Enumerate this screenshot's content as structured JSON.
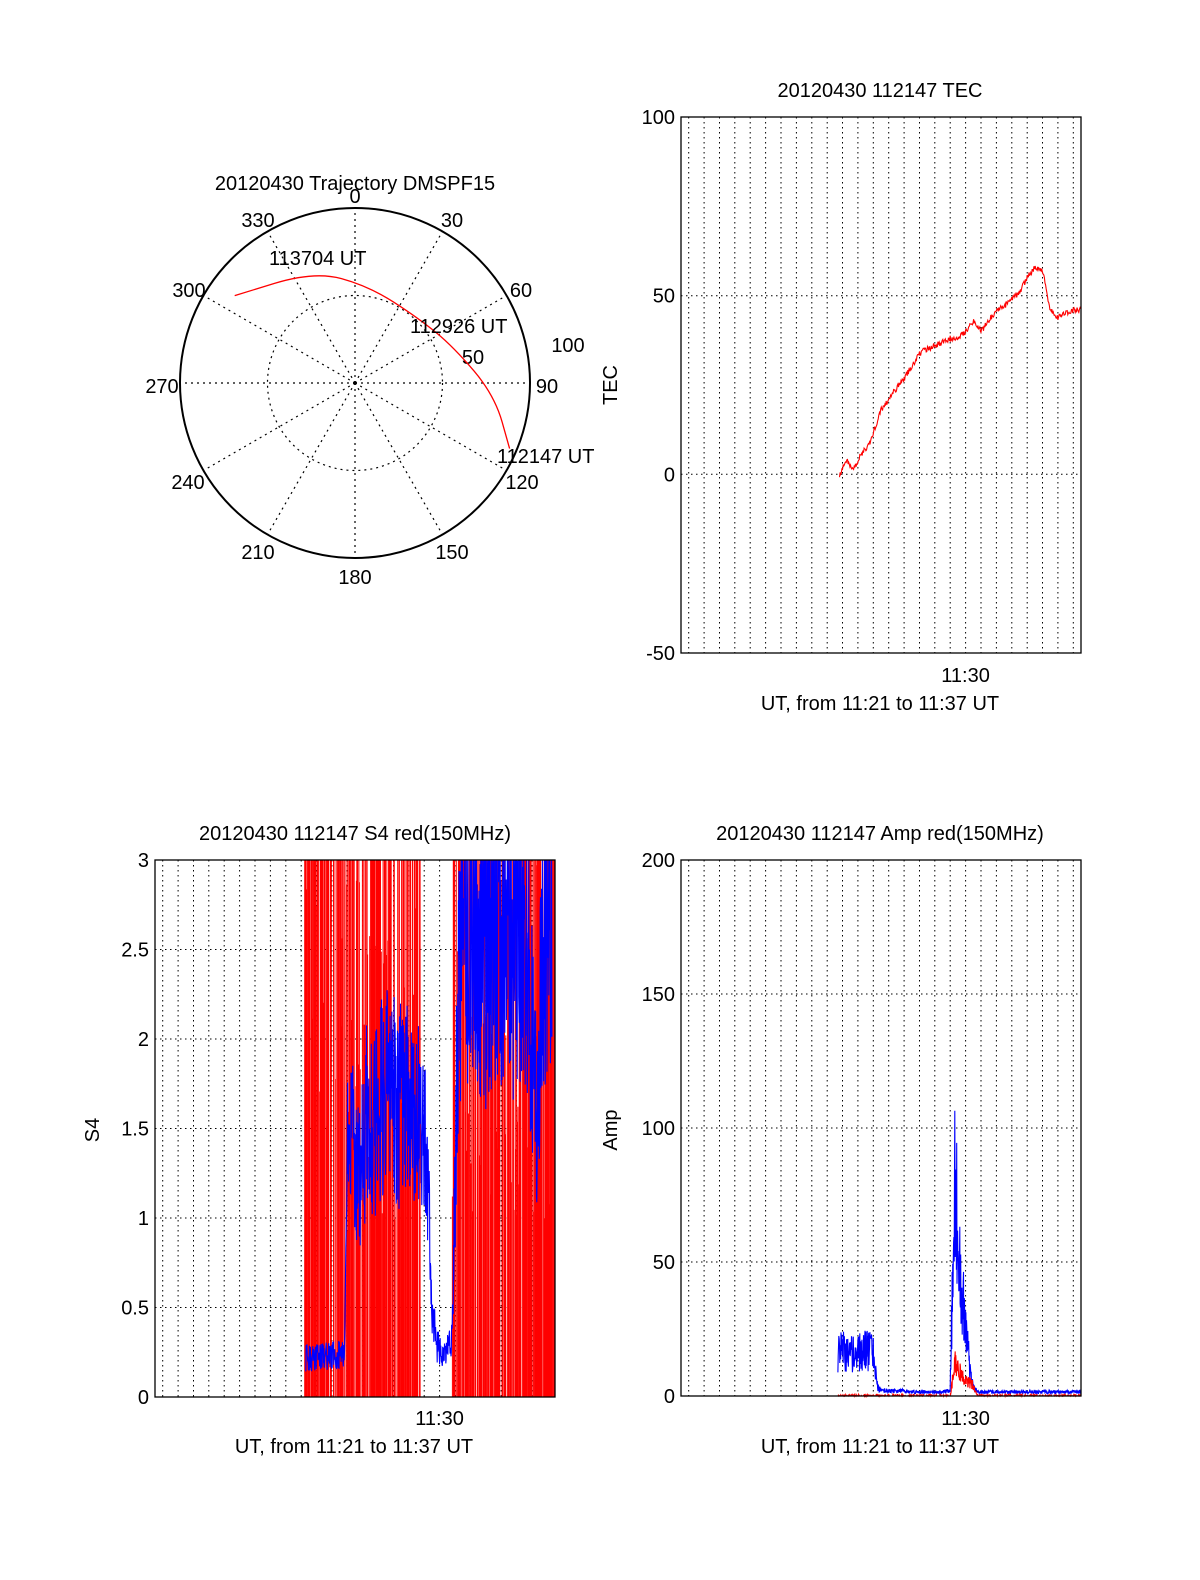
{
  "colors": {
    "red": "#ff0000",
    "blue": "#0000ff",
    "axis": "#000000",
    "grid": "#000000"
  },
  "chart_data": [
    {
      "id": "trajectory",
      "type": "polar",
      "title": "20120430 Trajectory DMSPF15",
      "azimuth_labels": [
        "0",
        "30",
        "60",
        "90",
        "120",
        "150",
        "180",
        "210",
        "240",
        "270",
        "300",
        "330"
      ],
      "radial_rings": [
        50,
        100
      ],
      "radial_labels": [
        "50",
        "100"
      ],
      "track": {
        "color": "red",
        "points": [
          {
            "az": 306,
            "r": 85
          },
          {
            "az": 340,
            "r": 68
          },
          {
            "az": 8,
            "r": 56
          },
          {
            "az": 45,
            "r": 52
          },
          {
            "az": 70,
            "r": 60
          },
          {
            "az": 95,
            "r": 80
          },
          {
            "az": 113,
            "r": 96
          }
        ]
      },
      "annotations": [
        "113704 UT",
        "112926 UT",
        "112147 UT"
      ]
    },
    {
      "id": "tec",
      "type": "line",
      "title": "20120430 112147 TEC",
      "ylabel": "TEC",
      "xlabel": "UT, from 11:21 to 11:37 UT",
      "x_tick_label": "11:30",
      "x_range_minutes": [
        11.5,
        37.5
      ],
      "x_tick_minute": 30,
      "grid": true,
      "ylim": [
        -50,
        100
      ],
      "yticks": [
        -50,
        0,
        50,
        100
      ],
      "ytick_labels": [
        "-50",
        "0",
        "50",
        "100"
      ],
      "series": [
        {
          "color": "red",
          "x": [
            21.8,
            22.3,
            22.7,
            23.0,
            23.3,
            23.8,
            24.5,
            25.0,
            25.5,
            26.0,
            26.5,
            27.0,
            27.5,
            28.0,
            28.5,
            29.0,
            29.5,
            30.0,
            30.5,
            31.0,
            31.5,
            32.0,
            32.5,
            33.0,
            33.5,
            34.0,
            34.5,
            35.0,
            35.5,
            36.0,
            36.5,
            37.0,
            37.5
          ],
          "y": [
            0,
            4,
            1,
            4,
            6,
            9,
            18,
            21,
            24,
            27,
            30,
            34,
            35,
            36,
            37,
            38,
            38.5,
            40,
            43,
            40,
            43,
            46,
            47,
            49,
            51,
            55,
            58,
            57,
            46,
            44,
            45,
            46,
            46
          ]
        }
      ]
    },
    {
      "id": "s4",
      "type": "line",
      "title": "20120430 112147 S4 red(150MHz)",
      "ylabel": "S4",
      "xlabel": "UT, from 11:21 to 11:37 UT",
      "x_tick_label": "11:30",
      "x_range_minutes": [
        11.5,
        37.5
      ],
      "x_tick_minute": 30,
      "grid": true,
      "ylim": [
        0,
        3
      ],
      "yticks": [
        0,
        0.5,
        1,
        1.5,
        2,
        2.5,
        3
      ],
      "ytick_labels": [
        "0",
        "0.5",
        "1",
        "1.5",
        "2",
        "2.5",
        "3"
      ],
      "series": [
        {
          "color": "red",
          "style": "spikes",
          "x_range": [
            21.2,
            37.5
          ],
          "gap": [
            28.8,
            30.8
          ]
        },
        {
          "color": "blue",
          "x": [
            21.3,
            21.8,
            22.3,
            22.8,
            23.3,
            23.8,
            24.0,
            24.3,
            24.8,
            25.3,
            25.8,
            26.3,
            26.8,
            27.3,
            27.8,
            28.3,
            28.8,
            29.2,
            29.5,
            29.8,
            30.1,
            30.4,
            30.8,
            31.3,
            31.8,
            32.3,
            32.8,
            33.3,
            33.8,
            34.3,
            34.8,
            35.3,
            35.8,
            36.3,
            36.8,
            37.3
          ],
          "y": [
            0.22,
            0.22,
            0.22,
            0.23,
            0.23,
            0.24,
            1.3,
            1.4,
            1.2,
            1.6,
            1.5,
            1.7,
            1.8,
            1.6,
            1.7,
            1.6,
            1.5,
            1.4,
            0.5,
            0.3,
            0.25,
            0.25,
            0.3,
            2.5,
            2.6,
            2.7,
            2.3,
            2.6,
            2.7,
            2.6,
            2.5,
            2.7,
            2.4,
            1.5,
            2.6,
            2.8
          ]
        }
      ]
    },
    {
      "id": "amp",
      "type": "line",
      "title": "20120430 112147 Amp red(150MHz)",
      "ylabel": "Amp",
      "xlabel": "UT, from 11:21 to 11:37 UT",
      "x_tick_label": "11:30",
      "x_range_minutes": [
        11.5,
        37.5
      ],
      "x_tick_minute": 30,
      "grid": true,
      "ylim": [
        0,
        200
      ],
      "yticks": [
        0,
        50,
        100,
        150,
        200
      ],
      "ytick_labels": [
        "0",
        "50",
        "100",
        "150",
        "200"
      ],
      "series": [
        {
          "color": "blue",
          "x": [
            21.7,
            22.0,
            22.5,
            23.0,
            23.5,
            24.0,
            24.3,
            24.5,
            25.5,
            26.5,
            27.5,
            28.5,
            29.0,
            29.3,
            29.5,
            29.8,
            30.0,
            30.3,
            30.5,
            30.8,
            31.5,
            32.5,
            33.5,
            34.5,
            35.5,
            36.5,
            37.5
          ],
          "y": [
            16,
            17,
            16,
            16,
            17,
            16,
            3,
            2,
            2,
            1.5,
            1.5,
            1.5,
            2,
            85,
            60,
            40,
            25,
            10,
            3,
            1.5,
            1.5,
            1.5,
            1.5,
            1.5,
            1.5,
            1.5,
            1.5
          ]
        },
        {
          "color": "red",
          "x": [
            21.7,
            24.3,
            24.5,
            29.0,
            29.3,
            29.6,
            29.9,
            30.2,
            30.5,
            30.8,
            35.0,
            35.5,
            36.0,
            36.3,
            37.5
          ],
          "y": [
            0,
            0,
            0,
            0,
            12,
            9,
            6,
            5,
            4,
            0,
            0,
            0,
            0,
            0,
            0
          ]
        }
      ]
    }
  ]
}
